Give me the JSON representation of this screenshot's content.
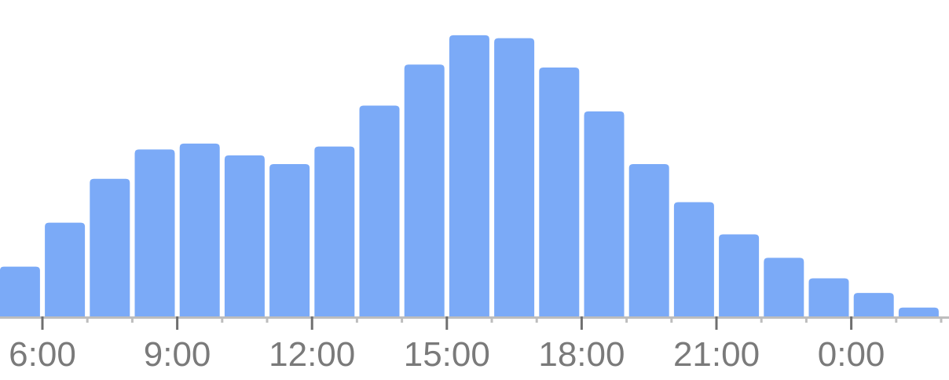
{
  "chart_data": {
    "type": "bar",
    "categories": [
      "5",
      "6",
      "7",
      "8",
      "9",
      "10",
      "11",
      "12",
      "13",
      "14",
      "15",
      "16",
      "17",
      "18",
      "19",
      "20",
      "21",
      "22",
      "23",
      "0",
      "1"
    ],
    "values": [
      17,
      32,
      47,
      57,
      59,
      55,
      52,
      58,
      72,
      86,
      96,
      95,
      85,
      70,
      52,
      39,
      28,
      20,
      13,
      8,
      3
    ],
    "xlabel": "",
    "ylabel": "",
    "ylim": [
      0,
      100
    ],
    "x_tick_labels": [
      "6:00",
      "9:00",
      "12:00",
      "15:00",
      "18:00",
      "21:00",
      "0:00"
    ],
    "grid": false,
    "legend": "none",
    "colors": {
      "bar": "#7baaf7",
      "axis": "#bdbdbd",
      "tick_label": "#7a7a7a"
    }
  }
}
